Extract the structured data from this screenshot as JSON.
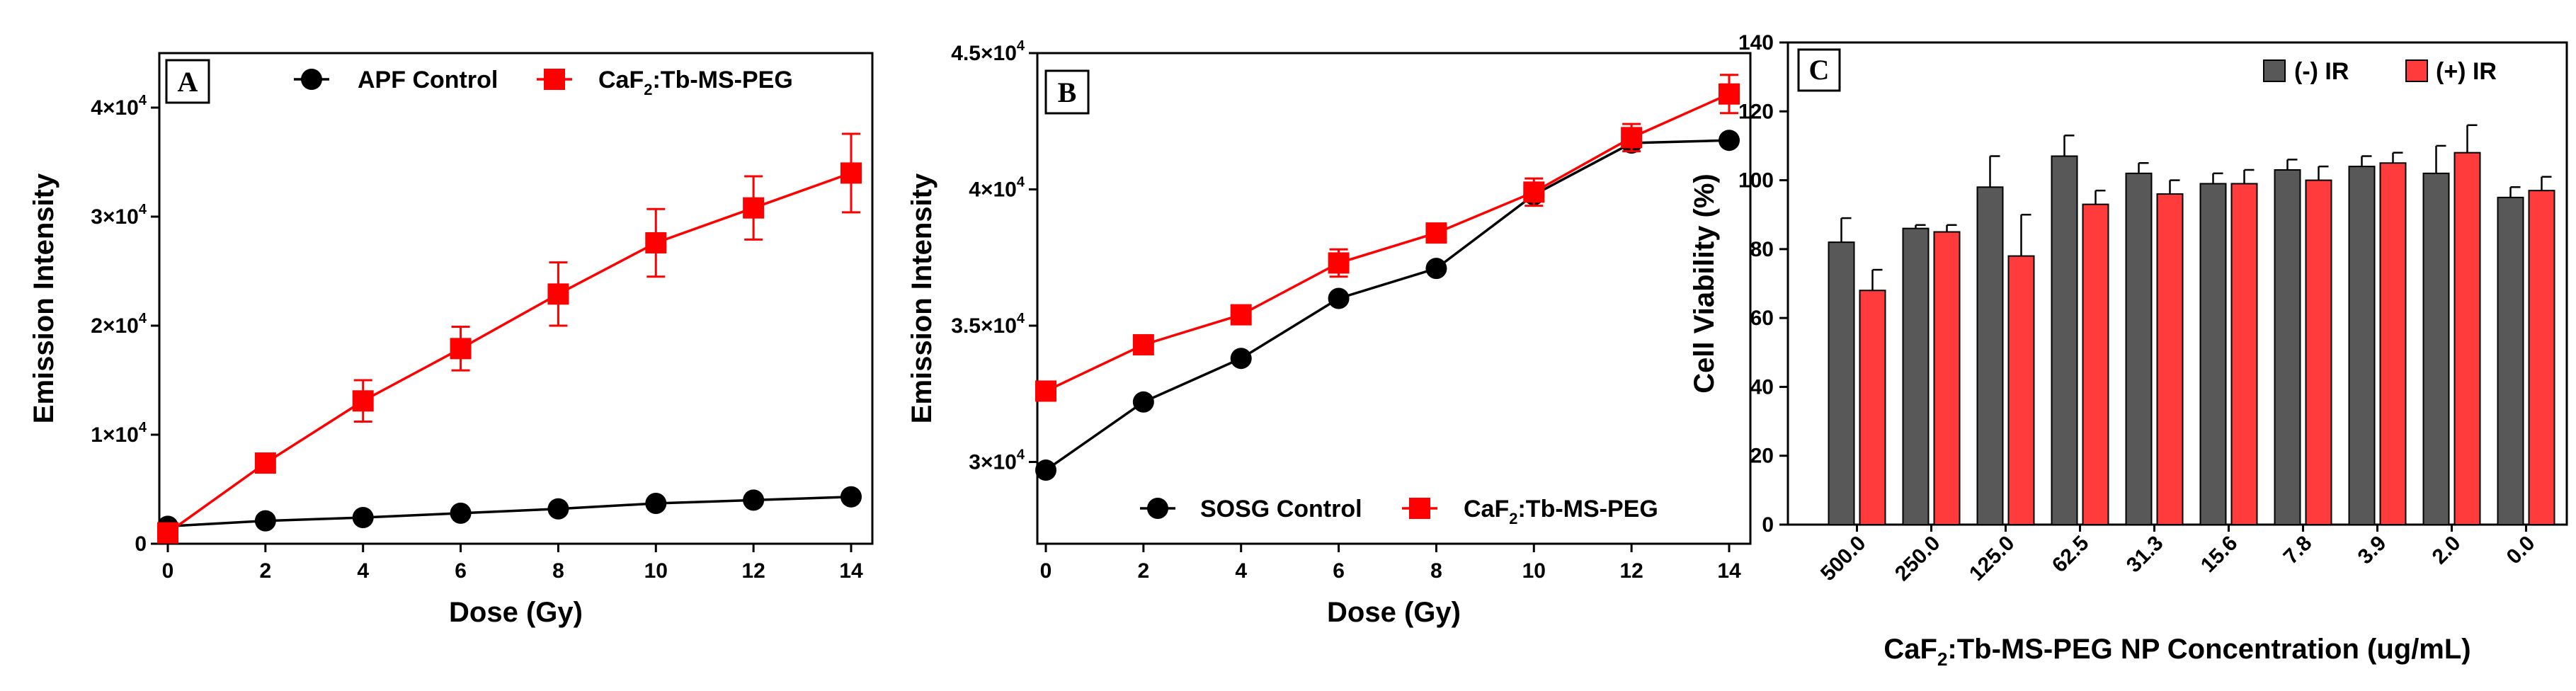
{
  "colors": {
    "control": "#000000",
    "treated": "#ff0000",
    "bar_neg": "#585858",
    "bar_pos": "#ff3b3b"
  },
  "chart_data": [
    {
      "panel": "A",
      "type": "line",
      "xlabel": "Dose (Gy)",
      "ylabel": "Emission Intensity",
      "xlim": [
        0,
        14
      ],
      "ylim": [
        0,
        45000
      ],
      "xticks": [
        "0",
        "2",
        "4",
        "6",
        "8",
        "10",
        "12",
        "14"
      ],
      "yticks": [
        {
          "value": 0,
          "base": "0",
          "exp": ""
        },
        {
          "value": 10000,
          "base": "1×10",
          "exp": "4"
        },
        {
          "value": 20000,
          "base": "2×10",
          "exp": "4"
        },
        {
          "value": 30000,
          "base": "3×10",
          "exp": "4"
        },
        {
          "value": 40000,
          "base": "4×10",
          "exp": "4"
        }
      ],
      "x": [
        0,
        2,
        4,
        6,
        8,
        10,
        12,
        14
      ],
      "series": [
        {
          "name_main": "APF Control",
          "name_sub": "",
          "name_rest": "",
          "color": "#000000",
          "marker": "circle",
          "values": [
            1600,
            2100,
            2400,
            2800,
            3200,
            3700,
            4000,
            4300
          ],
          "errors": [
            0,
            0,
            0,
            0,
            0,
            0,
            0,
            0
          ]
        },
        {
          "name_main": "CaF",
          "name_sub": "2",
          "name_rest": ":Tb-MS-PEG",
          "color": "#ff0000",
          "marker": "square",
          "values": [
            1000,
            7400,
            13100,
            17900,
            22900,
            27600,
            30800,
            34000
          ],
          "errors": [
            0,
            500,
            1900,
            2000,
            2900,
            3100,
            2900,
            3600
          ]
        }
      ]
    },
    {
      "panel": "B",
      "type": "line",
      "xlabel": "Dose (Gy)",
      "ylabel": "Emission Intensity",
      "xlim": [
        0,
        14
      ],
      "ylim": [
        27000,
        45000
      ],
      "xticks": [
        "0",
        "2",
        "4",
        "6",
        "8",
        "10",
        "12",
        "14"
      ],
      "yticks": [
        {
          "value": 30000,
          "base": "3×10",
          "exp": "4"
        },
        {
          "value": 35000,
          "base": "3.5×10",
          "exp": "4"
        },
        {
          "value": 40000,
          "base": "4×10",
          "exp": "4"
        },
        {
          "value": 45000,
          "base": "4.5×10",
          "exp": "4"
        }
      ],
      "x": [
        0,
        2,
        4,
        6,
        8,
        10,
        12,
        14
      ],
      "series": [
        {
          "name_main": "SOSG Control",
          "name_sub": "",
          "name_rest": "",
          "color": "#000000",
          "marker": "circle",
          "values": [
            29700,
            32200,
            33800,
            36000,
            37100,
            39800,
            41700,
            41800
          ],
          "errors": [
            0,
            0,
            0,
            0,
            0,
            0,
            0,
            0
          ]
        },
        {
          "name_main": "CaF",
          "name_sub": "2",
          "name_rest": ":Tb-MS-PEG",
          "color": "#ff0000",
          "marker": "square",
          "values": [
            32600,
            34300,
            35400,
            37300,
            38400,
            39900,
            41900,
            43500
          ],
          "errors": [
            0,
            0,
            0,
            500,
            0,
            500,
            500,
            700
          ]
        }
      ]
    },
    {
      "panel": "C",
      "type": "bar",
      "ylabel": "Cell Viability (%)",
      "xlabel_main": "CaF",
      "xlabel_sub": "2",
      "xlabel_rest": ":Tb-MS-PEG NP Concentration (ug/mL)",
      "ylim": [
        0,
        140
      ],
      "yticks": [
        "0",
        "20",
        "40",
        "60",
        "80",
        "100",
        "120",
        "140"
      ],
      "categories": [
        "500.0",
        "250.0",
        "125.0",
        "62.5",
        "31.3",
        "15.6",
        "7.8",
        "3.9",
        "2.0",
        "0.0"
      ],
      "series": [
        {
          "name": "(-) IR",
          "color": "#585858",
          "values": [
            82,
            86,
            98,
            107,
            102,
            99,
            103,
            104,
            102,
            95
          ],
          "errors": [
            7,
            1,
            9,
            6,
            3,
            3,
            3,
            3,
            8,
            3
          ]
        },
        {
          "name": "(+) IR",
          "color": "#ff3b3b",
          "values": [
            68,
            85,
            78,
            93,
            96,
            99,
            100,
            105,
            108,
            97
          ],
          "errors": [
            6,
            2,
            12,
            4,
            4,
            4,
            4,
            3,
            8,
            4
          ]
        }
      ]
    }
  ]
}
